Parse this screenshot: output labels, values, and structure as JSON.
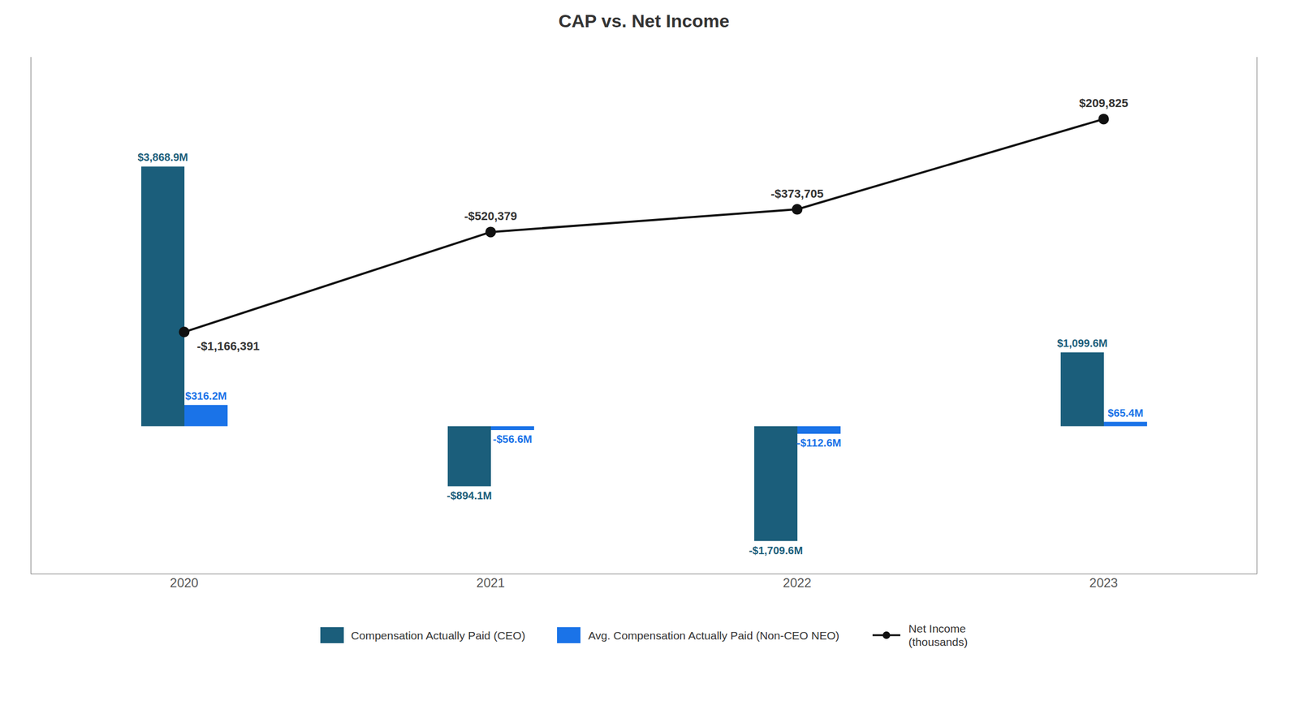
{
  "chart_data": {
    "type": "bar",
    "title": "CAP vs. Net Income",
    "categories": [
      "2020",
      "2021",
      "2022",
      "2023"
    ],
    "series": [
      {
        "name": "Compensation Actually Paid (CEO)",
        "type": "bar",
        "color": "#1b5e7b",
        "values": [
          3868.9,
          -894.1,
          -1709.6,
          1099.6
        ],
        "value_labels": [
          "$3,868.9M",
          "-$894.1M",
          "-$1,709.6M",
          "$1,099.6M"
        ]
      },
      {
        "name": "Avg. Compensation Actually Paid (Non-CEO NEO)",
        "type": "bar",
        "color": "#1a73e8",
        "values": [
          316.2,
          -56.6,
          -112.6,
          65.4
        ],
        "value_labels": [
          "$316.2M",
          "-$56.6M",
          "-$112.6M",
          "$65.4M"
        ]
      },
      {
        "name": "Net Income\n(thousands)",
        "type": "line",
        "axis": "y2",
        "color": "#111111",
        "marker": "circle",
        "values": [
          -1166391,
          -520379,
          -373705,
          209825
        ],
        "value_labels": [
          "-$1,166,391",
          "-$520,379",
          "-$373,705",
          "$209,825"
        ]
      }
    ],
    "ylim": [
      -2200,
      5500
    ],
    "y2lim": [
      -2729665,
      610665
    ],
    "data_labels": true,
    "tick_labels": "x",
    "grid": false,
    "legend": "bottom"
  }
}
